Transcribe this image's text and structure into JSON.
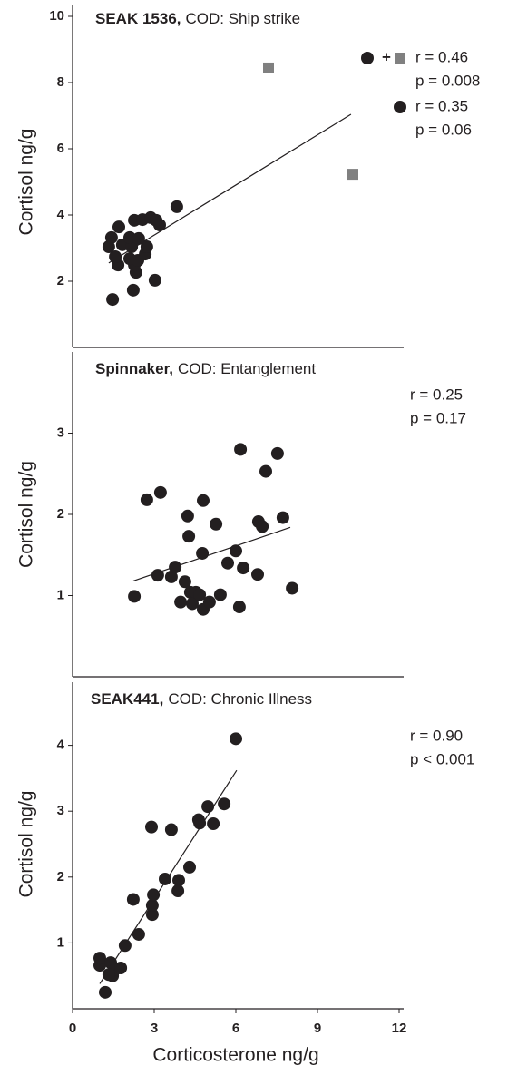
{
  "chart_data": [
    {
      "type": "scatter",
      "title_id": "SEAK 1536,",
      "title": "COD: Ship strike",
      "ylabel": "Cortisol ng/g",
      "xlim": [
        0,
        12
      ],
      "ylim": [
        0,
        10
      ],
      "yticks": [
        2,
        4,
        6,
        8,
        10
      ],
      "series": [
        {
          "marker": "circle",
          "color": "#231f20",
          "x": [
            1.47,
            2.23,
            3.03,
            2.33,
            2.27,
            1.67,
            2.1,
            2.4,
            2.67,
            1.57,
            1.33,
            1.83,
            2.17,
            2.73,
            1.43,
            2.1,
            2.43,
            1.7,
            2.27,
            2.57,
            2.87,
            3.2,
            3.07,
            3.83
          ],
          "values": [
            1.45,
            1.73,
            2.03,
            2.27,
            2.49,
            2.49,
            2.68,
            2.63,
            2.82,
            2.74,
            3.04,
            3.1,
            3.04,
            3.04,
            3.32,
            3.32,
            3.29,
            3.64,
            3.84,
            3.86,
            3.92,
            3.7,
            3.84,
            4.25
          ]
        },
        {
          "marker": "square",
          "color": "#808080",
          "x": [
            7.2,
            10.3
          ],
          "values": [
            8.44,
            5.23
          ]
        }
      ],
      "trendline": {
        "x": [
          1.33,
          10.23
        ],
        "values": [
          2.55,
          7.04
        ]
      },
      "stats": [
        {
          "markers": [
            "circle",
            "square"
          ],
          "joiner": "+",
          "lines": [
            "r  = 0.46",
            "p = 0.008"
          ]
        },
        {
          "markers": [
            "circle"
          ],
          "lines": [
            "r  = 0.35",
            "p = 0.06"
          ]
        }
      ]
    },
    {
      "type": "scatter",
      "title_id": "Spinnaker,",
      "title": "COD: Entanglement",
      "ylabel": "Cortisol ng/g",
      "xlim": [
        0,
        12
      ],
      "ylim": [
        0,
        4
      ],
      "yticks": [
        1,
        2,
        3
      ],
      "series": [
        {
          "marker": "circle",
          "color": "#231f20",
          "x": [
            2.27,
            2.73,
            3.23,
            3.13,
            3.63,
            3.77,
            3.97,
            4.13,
            4.23,
            4.27,
            4.33,
            4.4,
            4.53,
            4.67,
            4.8,
            4.77,
            4.8,
            5.03,
            5.27,
            5.43,
            5.7,
            6.0,
            6.13,
            6.17,
            6.27,
            6.8,
            6.83,
            6.97,
            7.1,
            7.53,
            7.73,
            8.07
          ],
          "values": [
            0.99,
            2.18,
            2.27,
            1.25,
            1.23,
            1.35,
            0.92,
            1.17,
            1.98,
            1.73,
            1.04,
            0.9,
            1.04,
            1.01,
            0.83,
            1.52,
            2.17,
            0.92,
            1.88,
            1.01,
            1.4,
            1.55,
            0.86,
            2.8,
            1.34,
            1.26,
            1.91,
            1.85,
            2.53,
            2.75,
            1.96,
            1.09
          ]
        }
      ],
      "trendline": {
        "x": [
          2.23,
          8.0
        ],
        "values": [
          1.18,
          1.84
        ]
      },
      "stats": [
        {
          "markers": [],
          "lines": [
            "r = 0.25",
            "p = 0.17"
          ]
        }
      ]
    },
    {
      "type": "scatter",
      "title_id": "SEAK441,",
      "title": "COD: Chronic Illness",
      "ylabel": "Cortisol ng/g",
      "xlabel": "Corticosterone ng/g",
      "xlim": [
        0,
        12
      ],
      "ylim": [
        0,
        5
      ],
      "yticks": [
        1,
        2,
        3,
        4
      ],
      "xticks": [
        0,
        3,
        6,
        9,
        12
      ],
      "series": [
        {
          "marker": "circle",
          "color": "#231f20",
          "x": [
            1.0,
            1.0,
            1.2,
            1.4,
            1.47,
            1.57,
            1.77,
            1.33,
            1.93,
            2.23,
            2.43,
            2.93,
            2.93,
            2.97,
            2.9,
            3.4,
            3.63,
            3.9,
            3.87,
            4.3,
            4.63,
            4.67,
            4.97,
            5.17,
            5.57,
            6.0
          ],
          "values": [
            0.66,
            0.77,
            0.25,
            0.7,
            0.5,
            0.6,
            0.62,
            0.52,
            0.96,
            1.66,
            1.13,
            1.43,
            1.57,
            1.73,
            2.76,
            1.97,
            2.72,
            1.95,
            1.79,
            2.15,
            2.87,
            2.82,
            3.07,
            2.81,
            3.11,
            4.1
          ]
        }
      ],
      "trendline": {
        "x": [
          1.0,
          6.03
        ],
        "values": [
          0.38,
          3.62
        ]
      },
      "stats": [
        {
          "markers": [],
          "lines": [
            "r = 0.90",
            "p < 0.001"
          ]
        }
      ]
    }
  ]
}
